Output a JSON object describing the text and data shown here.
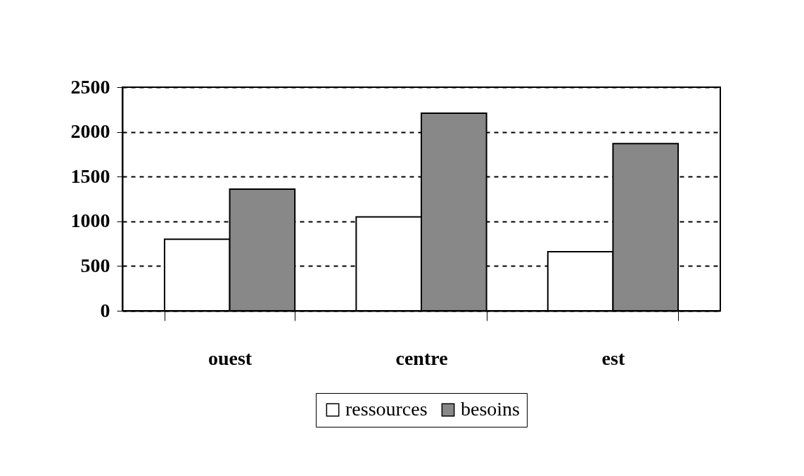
{
  "chart_data": {
    "type": "bar",
    "categories": [
      "ouest",
      "centre",
      "est"
    ],
    "series": [
      {
        "name": "ressources",
        "color": "#ffffff",
        "values": [
          800,
          1050,
          660
        ]
      },
      {
        "name": "besoins",
        "color": "#888888",
        "values": [
          1360,
          2210,
          1870
        ]
      }
    ],
    "ylim": [
      0,
      2500
    ],
    "yticks": [
      0,
      500,
      1000,
      1500,
      2000,
      2500
    ],
    "grid": "y",
    "legend": "bottom"
  }
}
